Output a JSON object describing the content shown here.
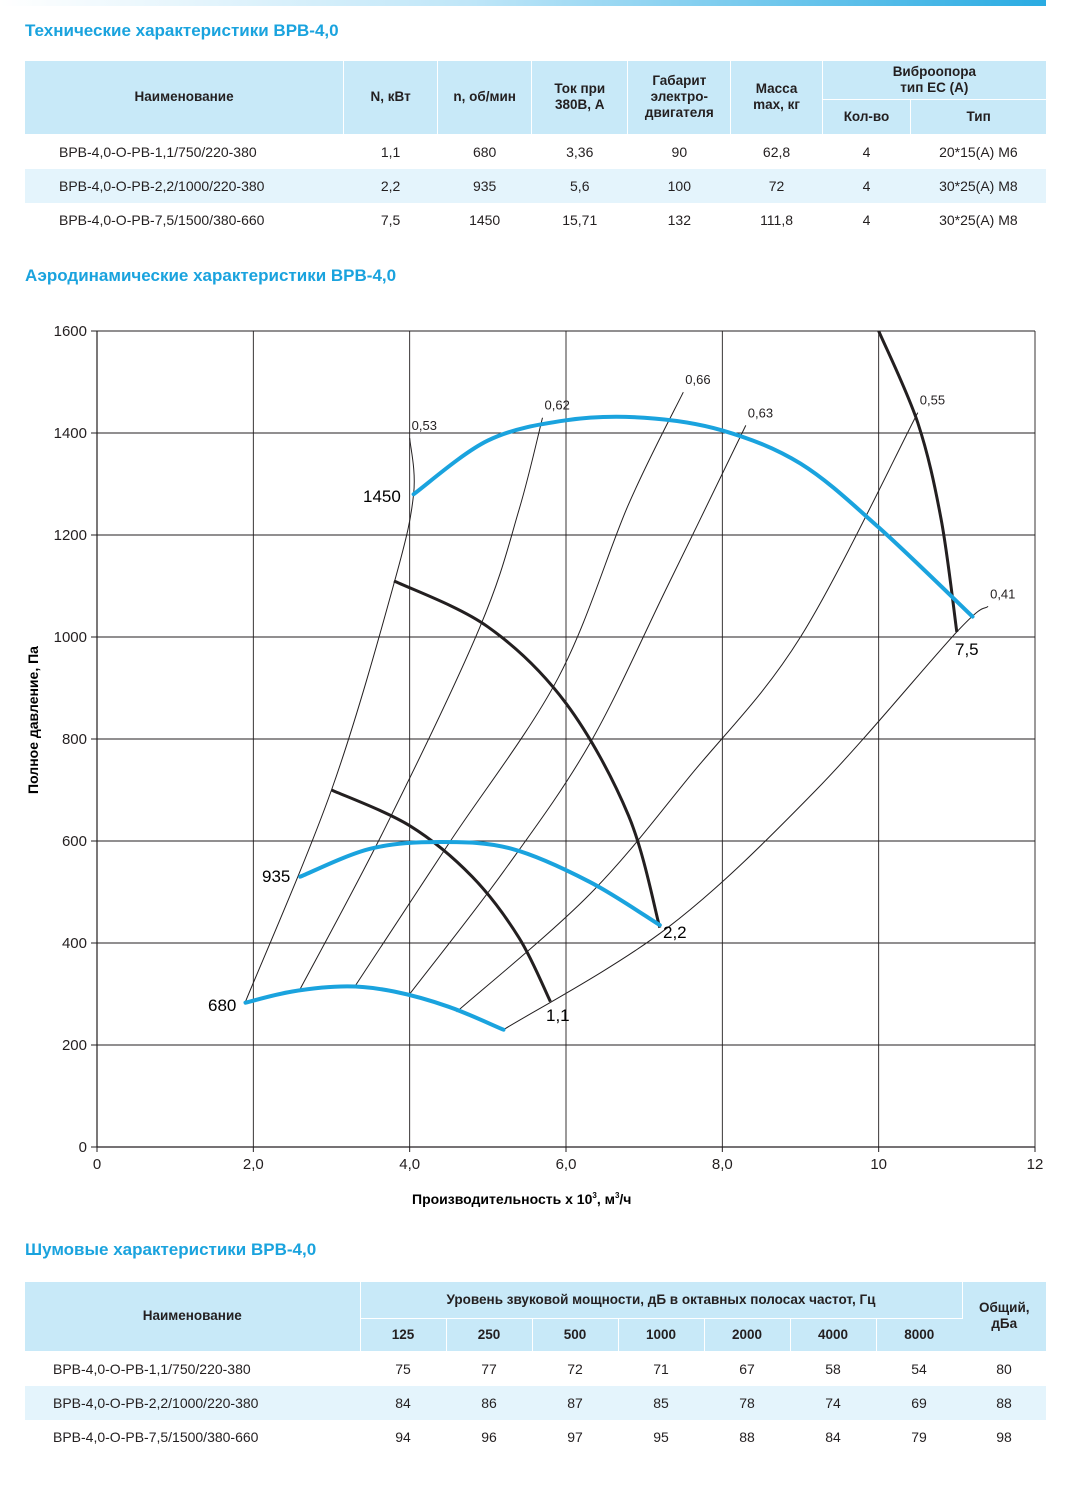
{
  "tech": {
    "title": "Технические характеристики ВРВ-4,0",
    "headers": {
      "name": "Наименование",
      "power": "N, кВт",
      "speed": "n, об/мин",
      "current": "Ток при 380В, А",
      "frame": "Габарит электро- двигателя",
      "mass": "Масса max, кг",
      "vibro": "Виброопора тип ЕС (А)",
      "qty": "Кол-во",
      "type": "Тип"
    },
    "rows": [
      {
        "name": "ВРВ-4,0-О-РВ-1,1/750/220-380",
        "power": "1,1",
        "speed": "680",
        "current": "3,36",
        "frame": "90",
        "mass": "62,8",
        "qty": "4",
        "type": "20*15(А) М6"
      },
      {
        "name": "ВРВ-4,0-О-РВ-2,2/1000/220-380",
        "power": "2,2",
        "speed": "935",
        "current": "5,6",
        "frame": "100",
        "mass": "72",
        "qty": "4",
        "type": "30*25(А) М8"
      },
      {
        "name": "ВРВ-4,0-О-РВ-7,5/1500/380-660",
        "power": "7,5",
        "speed": "1450",
        "current": "15,71",
        "frame": "132",
        "mass": "111,8",
        "qty": "4",
        "type": "30*25(А) М8"
      }
    ]
  },
  "aero": {
    "title": "Аэродинамические характеристики ВРВ-4,0"
  },
  "chart_data": {
    "type": "line",
    "xlabel_main": "Производительность х 10",
    "xlabel_sup": "3",
    "xlabel_unit": ", м",
    "xlabel_unit_sup": "3",
    "xlabel_end": "/ч",
    "ylabel": "Полное давление, Па",
    "xlim": [
      0,
      12
    ],
    "ylim": [
      0,
      1600
    ],
    "x_ticks": [
      {
        "v": 0,
        "label": "0"
      },
      {
        "v": 2,
        "label": "2,0"
      },
      {
        "v": 4,
        "label": "4,0"
      },
      {
        "v": 6,
        "label": "6,0"
      },
      {
        "v": 8,
        "label": "8,0"
      },
      {
        "v": 10,
        "label": "10"
      },
      {
        "v": 12,
        "label": "12"
      }
    ],
    "y_ticks": [
      {
        "v": 0,
        "label": "0"
      },
      {
        "v": 200,
        "label": "200"
      },
      {
        "v": 400,
        "label": "400"
      },
      {
        "v": 600,
        "label": "600"
      },
      {
        "v": 800,
        "label": "800"
      },
      {
        "v": 1000,
        "label": "1000"
      },
      {
        "v": 1200,
        "label": "1200"
      },
      {
        "v": 1400,
        "label": "1400"
      },
      {
        "v": 1600,
        "label": "1600"
      }
    ],
    "grid": true,
    "pressure_curves": [
      {
        "name": "680",
        "color": "#1aa3de",
        "points": [
          [
            1.9,
            283
          ],
          [
            2.5,
            305
          ],
          [
            3.2,
            315
          ],
          [
            3.8,
            305
          ],
          [
            4.5,
            275
          ],
          [
            5.2,
            230
          ]
        ]
      },
      {
        "name": "935",
        "color": "#1aa3de",
        "points": [
          [
            2.6,
            530
          ],
          [
            3.5,
            585
          ],
          [
            4.4,
            598
          ],
          [
            5.3,
            585
          ],
          [
            6.3,
            520
          ],
          [
            7.2,
            435
          ]
        ]
      },
      {
        "name": "1450",
        "color": "#1aa3de",
        "points": [
          [
            4.05,
            1280
          ],
          [
            5.0,
            1385
          ],
          [
            6.0,
            1425
          ],
          [
            7.0,
            1430
          ],
          [
            8.0,
            1405
          ],
          [
            9.0,
            1340
          ],
          [
            10.0,
            1215
          ],
          [
            11.2,
            1040
          ]
        ]
      }
    ],
    "power_curves": [
      {
        "name": "1,1",
        "color": "#231f20",
        "points": [
          [
            3.0,
            700
          ],
          [
            4.0,
            630
          ],
          [
            4.8,
            530
          ],
          [
            5.4,
            410
          ],
          [
            5.8,
            285
          ]
        ]
      },
      {
        "name": "2,2",
        "color": "#231f20",
        "points": [
          [
            3.8,
            1110
          ],
          [
            5.0,
            1020
          ],
          [
            6.0,
            870
          ],
          [
            6.8,
            650
          ],
          [
            7.2,
            430
          ]
        ]
      },
      {
        "name": "7,5",
        "color": "#231f20",
        "points": [
          [
            10.0,
            1600
          ],
          [
            10.5,
            1420
          ],
          [
            10.8,
            1230
          ],
          [
            11.0,
            1010
          ]
        ]
      }
    ],
    "efficiency_lines": [
      {
        "label": "0,53",
        "points": [
          [
            1.9,
            285
          ],
          [
            3.0,
            700
          ],
          [
            3.8,
            1105
          ],
          [
            4.05,
            1280
          ],
          [
            4.0,
            1390
          ]
        ]
      },
      {
        "label": "0,62",
        "points": [
          [
            2.6,
            310
          ],
          [
            3.7,
            630
          ],
          [
            4.9,
            1020
          ],
          [
            5.4,
            1250
          ],
          [
            5.7,
            1430
          ]
        ]
      },
      {
        "label": "0,66",
        "points": [
          [
            3.3,
            315
          ],
          [
            4.5,
            595
          ],
          [
            5.9,
            920
          ],
          [
            6.8,
            1260
          ],
          [
            7.5,
            1480
          ]
        ]
      },
      {
        "label": "0,63",
        "points": [
          [
            4.0,
            300
          ],
          [
            5.2,
            540
          ],
          [
            6.3,
            790
          ],
          [
            7.3,
            1100
          ],
          [
            8.3,
            1415
          ]
        ]
      },
      {
        "label": "0,55",
        "points": [
          [
            4.6,
            265
          ],
          [
            6.3,
            495
          ],
          [
            7.6,
            730
          ],
          [
            9.0,
            1000
          ],
          [
            10.5,
            1440
          ]
        ]
      },
      {
        "label": "0,41",
        "points": [
          [
            5.2,
            230
          ],
          [
            7.3,
            430
          ],
          [
            9.2,
            700
          ],
          [
            11.0,
            1010
          ],
          [
            11.4,
            1060
          ]
        ]
      }
    ],
    "annotations": {
      "speed_1450": "1450",
      "speed_935": "935",
      "speed_680": "680",
      "power_1_1": "1,1",
      "power_2_2": "2,2",
      "power_7_5": "7,5"
    }
  },
  "noise": {
    "title": "Шумовые характеристики ВРВ-4,0",
    "headers": {
      "name": "Наименование",
      "level": "Уровень звуковой мощности, дБ в октавных полосах частот, Гц",
      "total": "Общий, дБа",
      "freqs": [
        "125",
        "250",
        "500",
        "1000",
        "2000",
        "4000",
        "8000"
      ]
    },
    "rows": [
      {
        "name": "ВРВ-4,0-О-РВ-1,1/750/220-380",
        "values": [
          "75",
          "77",
          "72",
          "71",
          "67",
          "58",
          "54"
        ],
        "total": "80"
      },
      {
        "name": "ВРВ-4,0-О-РВ-2,2/1000/220-380",
        "values": [
          "84",
          "86",
          "87",
          "85",
          "78",
          "74",
          "69"
        ],
        "total": "88"
      },
      {
        "name": "ВРВ-4,0-О-РВ-7,5/1500/380-660",
        "values": [
          "94",
          "96",
          "97",
          "95",
          "88",
          "84",
          "79"
        ],
        "total": "98"
      }
    ]
  }
}
